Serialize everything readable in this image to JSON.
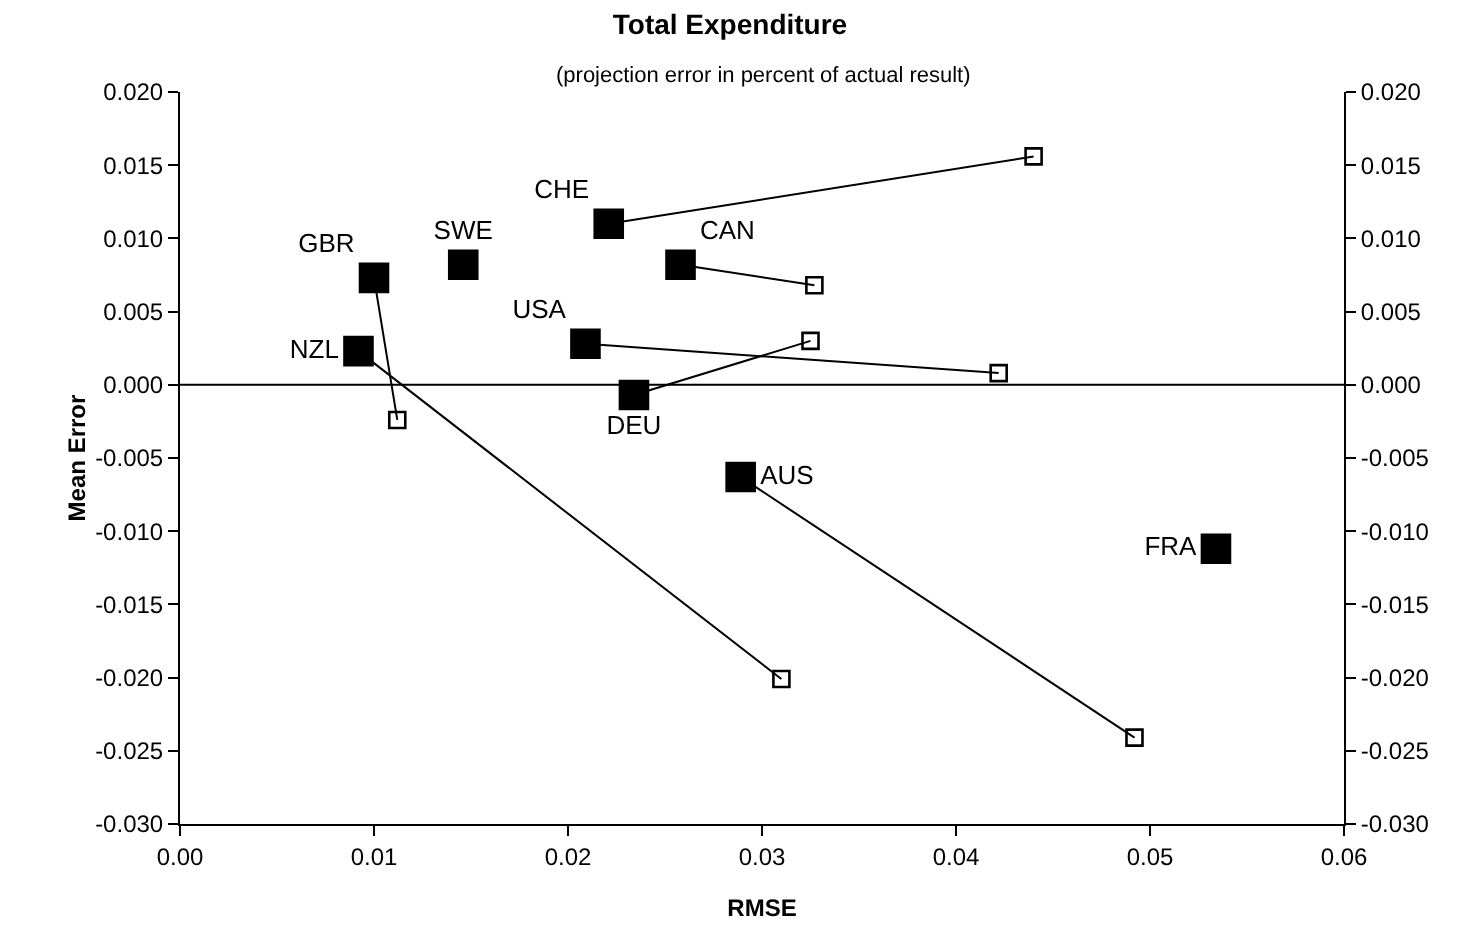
{
  "chart_data": {
    "type": "line",
    "title": "Total Expenditure",
    "subtitle": "(projection error in percent of actual result)",
    "xlabel": "RMSE",
    "ylabel": "Mean Error",
    "series": [
      {
        "name": "GBR",
        "color": "#000000",
        "x": [
          0.01,
          0.0112
        ],
        "values": [
          0.0073,
          -0.0024
        ]
      },
      {
        "name": "SWE",
        "color": "#000000",
        "x": [
          0.0146
        ],
        "values": [
          0.0082
        ]
      },
      {
        "name": "CHE",
        "color": "#000000",
        "x": [
          0.0221,
          0.044
        ],
        "values": [
          0.011,
          0.0156
        ]
      },
      {
        "name": "CAN",
        "color": "#000000",
        "x": [
          0.0258,
          0.0327
        ],
        "values": [
          0.0082,
          0.0068
        ]
      },
      {
        "name": "USA",
        "color": "#000000",
        "x": [
          0.0209,
          0.0422
        ],
        "values": [
          0.0028,
          0.0008
        ]
      },
      {
        "name": "NZL",
        "color": "#000000",
        "x": [
          0.0092,
          0.031
        ],
        "values": [
          0.0023,
          -0.0201
        ]
      },
      {
        "name": "DEU",
        "color": "#000000",
        "x": [
          0.0234,
          0.0325
        ],
        "values": [
          -0.0007,
          0.003
        ]
      },
      {
        "name": "AUS",
        "color": "#000000",
        "x": [
          0.0289,
          0.0492
        ],
        "values": [
          -0.0063,
          -0.0241
        ]
      },
      {
        "name": "FRA",
        "color": "#000000",
        "x": [
          0.0534
        ],
        "values": [
          -0.0112
        ]
      }
    ],
    "xlim": [
      0,
      0.06
    ],
    "ylim": [
      -0.03,
      0.02
    ],
    "y2lim": [
      -0.03,
      0.02
    ],
    "xticks": [
      {
        "value": 0,
        "label": "0.00"
      },
      {
        "value": 0.01,
        "label": "0.01"
      },
      {
        "value": 0.02,
        "label": "0.02"
      },
      {
        "value": 0.03,
        "label": "0.03"
      },
      {
        "value": 0.04,
        "label": "0.04"
      },
      {
        "value": 0.05,
        "label": "0.05"
      },
      {
        "value": 0.06,
        "label": "0.06"
      }
    ],
    "yticks": [
      {
        "value": -0.03,
        "label": "-0.030"
      },
      {
        "value": -0.025,
        "label": "-0.025"
      },
      {
        "value": -0.02,
        "label": "-0.020"
      },
      {
        "value": -0.015,
        "label": "-0.015"
      },
      {
        "value": -0.01,
        "label": "-0.010"
      },
      {
        "value": -0.005,
        "label": "-0.005"
      },
      {
        "value": 0,
        "label": "0.000"
      },
      {
        "value": 0.005,
        "label": "0.005"
      },
      {
        "value": 0.01,
        "label": "0.010"
      },
      {
        "value": 0.015,
        "label": "0.015"
      },
      {
        "value": 0.02,
        "label": "0.020"
      }
    ],
    "y2ticks": [
      {
        "value": -0.03,
        "label": "-0.030"
      },
      {
        "value": -0.025,
        "label": "-0.025"
      },
      {
        "value": -0.02,
        "label": "-0.020"
      },
      {
        "value": -0.015,
        "label": "-0.015"
      },
      {
        "value": -0.01,
        "label": "-0.010"
      },
      {
        "value": -0.005,
        "label": "-0.005"
      },
      {
        "value": 0,
        "label": "0.000"
      },
      {
        "value": 0.005,
        "label": "0.005"
      },
      {
        "value": 0.01,
        "label": "0.010"
      },
      {
        "value": 0.015,
        "label": "0.015"
      },
      {
        "value": 0.02,
        "label": "0.020"
      }
    ],
    "ref_lines": [
      {
        "axis": "y",
        "value": 0,
        "color": "#000000"
      }
    ],
    "marker": "square",
    "line_style": "solid",
    "grid": false,
    "legend": false
  }
}
